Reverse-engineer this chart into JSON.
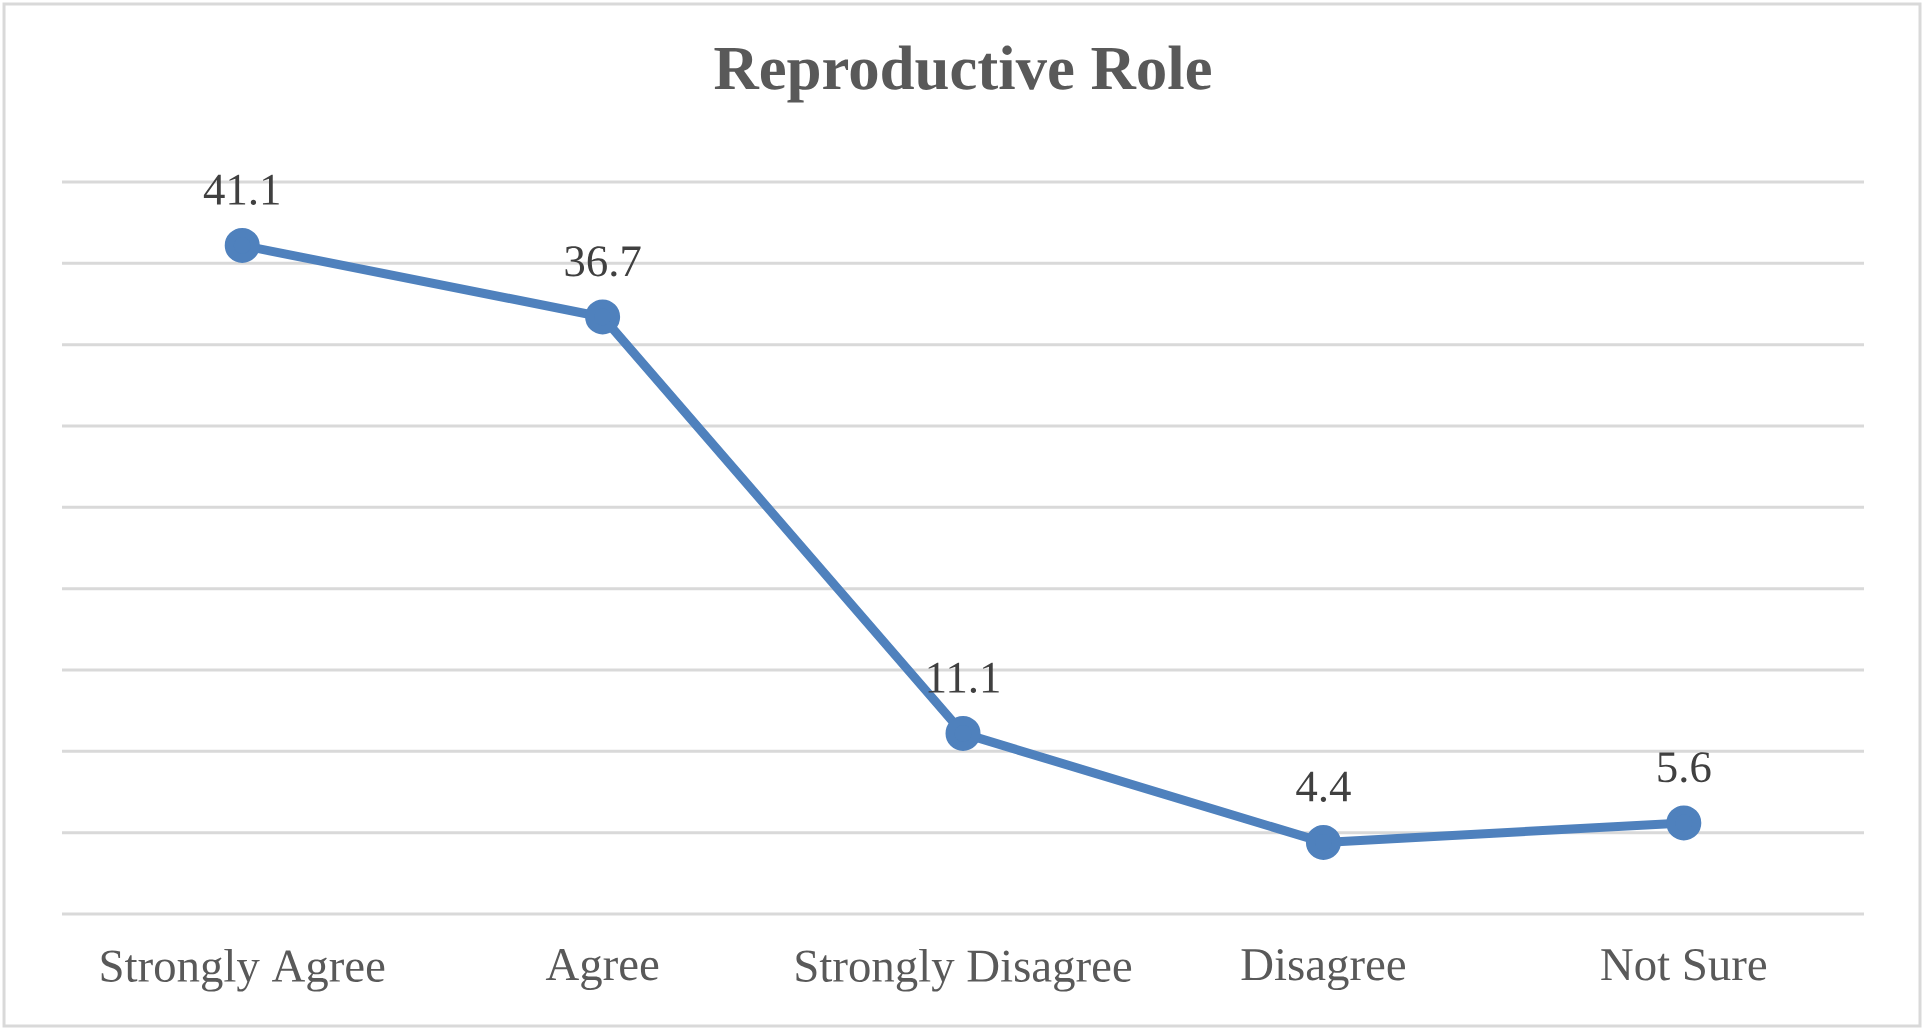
{
  "chart_data": {
    "type": "line",
    "title": "Reproductive Role",
    "categories": [
      "Strongly Agree",
      "Agree",
      "Strongly Disagree",
      "Disagree",
      "Not Sure"
    ],
    "series": [
      {
        "color": "#4f81bd",
        "values": [
          41.1,
          36.7,
          11.1,
          4.4,
          5.6
        ]
      }
    ],
    "data_labels": true,
    "marker": "circle",
    "line_style": "solid",
    "ylim": [
      0,
      45
    ],
    "yticks": [
      {
        "value": 0,
        "label": null
      },
      {
        "value": 5,
        "label": null
      },
      {
        "value": 10,
        "label": null
      },
      {
        "value": 15,
        "label": null
      },
      {
        "value": 20,
        "label": null
      },
      {
        "value": 25,
        "label": null
      },
      {
        "value": 30,
        "label": null
      },
      {
        "value": 35,
        "label": null
      },
      {
        "value": 40,
        "label": null
      },
      {
        "value": 45,
        "label": null
      }
    ],
    "grid": "y",
    "tick_labels": "x"
  }
}
